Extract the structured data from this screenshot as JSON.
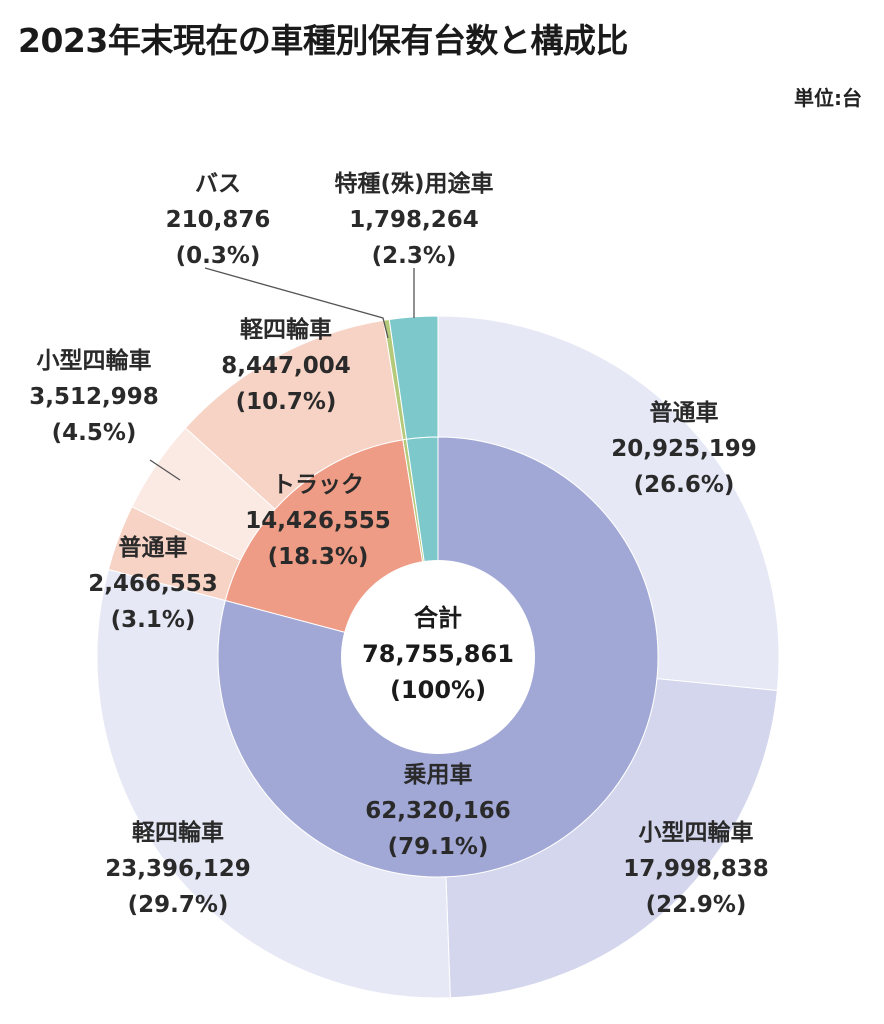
{
  "title": "2023年末現在の車種別保有台数と構成比",
  "unit": "単位:台",
  "chart_data": {
    "type": "pie",
    "total": {
      "label": "合計",
      "value": "78,755,861",
      "percent": "(100%)"
    },
    "inner": [
      {
        "name": "乗用車",
        "value": 62320166,
        "display": "62,320,166",
        "percent": "(79.1%)",
        "color": "#a1a8d6"
      },
      {
        "name": "トラック",
        "value": 14426555,
        "display": "14,426,555",
        "percent": "(18.3%)",
        "color": "#ef9c86"
      },
      {
        "name": "バス",
        "value": 210876,
        "display": "210,876",
        "percent": "(0.3%)",
        "color": "#b5c97a"
      },
      {
        "name": "特種(殊)用途車",
        "value": 1798264,
        "display": "1,798,264",
        "percent": "(2.3%)",
        "color": "#7cc8cb"
      }
    ],
    "outer": [
      {
        "name": "普通車",
        "value": 20925199,
        "display": "20,925,199",
        "percent": "(26.6%)",
        "color": "#e6e8f5"
      },
      {
        "name": "小型四輪車",
        "value": 17998838,
        "display": "17,998,838",
        "percent": "(22.9%)",
        "color": "#d3d6ec"
      },
      {
        "name": "軽四輪車",
        "value": 23396129,
        "display": "23,396,129",
        "percent": "(29.7%)",
        "color": "#e6e8f5"
      },
      {
        "name": "普通車",
        "value": 2466553,
        "display": "2,466,553",
        "percent": "(3.1%)",
        "color": "#f7d3c6"
      },
      {
        "name": "小型四輪車",
        "value": 3512998,
        "display": "3,512,998",
        "percent": "(4.5%)",
        "color": "#fbeae4"
      },
      {
        "name": "軽四輪車",
        "value": 8447004,
        "display": "8,447,004",
        "percent": "(10.7%)",
        "color": "#f7d3c6"
      },
      {
        "name": "バス",
        "value": 210876,
        "display": "210,876",
        "percent": "(0.3%)",
        "color": "#b5c97a"
      },
      {
        "name": "特種(殊)用途車",
        "value": 1798264,
        "display": "1,798,264",
        "percent": "(2.3%)",
        "color": "#7cc8cb"
      }
    ],
    "legend": "none"
  }
}
